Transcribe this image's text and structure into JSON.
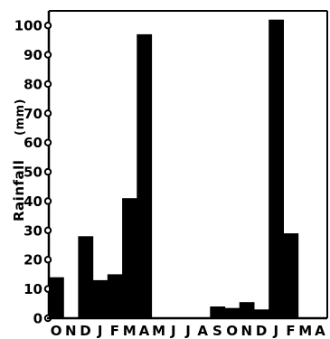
{
  "chart_data": {
    "type": "bar",
    "title": "",
    "xlabel": "",
    "ylabel": "Rainfall",
    "ylabel_unit": "(mm)",
    "ylim": [
      0,
      105
    ],
    "yticks": [
      0,
      10,
      20,
      30,
      40,
      50,
      60,
      70,
      80,
      90,
      100
    ],
    "grid": false,
    "bar_color": "#000000",
    "categories": [
      "O",
      "N",
      "D",
      "J",
      "F",
      "M",
      "A",
      "M",
      "J",
      "J",
      "A",
      "S",
      "O",
      "N",
      "D",
      "J",
      "F",
      "M",
      "A"
    ],
    "values": [
      14,
      0,
      28,
      13,
      15,
      41,
      97,
      0,
      0,
      0,
      0,
      4,
      3.5,
      5.5,
      3,
      102,
      29,
      0,
      0
    ]
  }
}
